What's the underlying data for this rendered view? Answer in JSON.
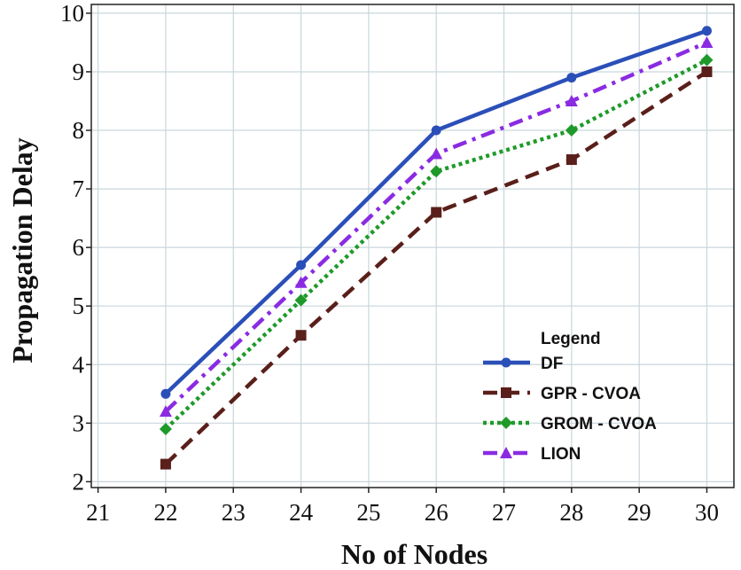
{
  "chart_data": {
    "type": "line",
    "title": "",
    "xlabel": "No of Nodes",
    "ylabel": "Propagation Delay",
    "x": [
      22,
      24,
      26,
      28,
      30
    ],
    "xlim": [
      20.9,
      30.4
    ],
    "ylim": [
      1.9,
      10.15
    ],
    "xticks": [
      21,
      22,
      23,
      24,
      25,
      26,
      27,
      28,
      29,
      30
    ],
    "yticks": [
      2,
      3,
      4,
      5,
      6,
      7,
      8,
      9,
      10
    ],
    "grid": true,
    "legend": {
      "title": "Legend",
      "placement": "lower-right"
    },
    "series": [
      {
        "name": "DF",
        "values": [
          3.5,
          5.7,
          8.0,
          8.9,
          9.7
        ],
        "color": "#2b4fb8",
        "dash": "solid",
        "marker": "circle"
      },
      {
        "name": "GPR - CVOA",
        "values": [
          2.3,
          4.5,
          6.6,
          7.5,
          9.0
        ],
        "color": "#5a1f1a",
        "dash": "dashed",
        "marker": "square"
      },
      {
        "name": "GROM - CVOA",
        "values": [
          2.9,
          5.1,
          7.3,
          8.0,
          9.2
        ],
        "color": "#1f9a2a",
        "dash": "dotted",
        "marker": "diamond"
      },
      {
        "name": "LION",
        "values": [
          3.2,
          5.4,
          7.6,
          8.5,
          9.5
        ],
        "color": "#8a2be2",
        "dash": "dashdot",
        "marker": "triangle"
      }
    ]
  }
}
